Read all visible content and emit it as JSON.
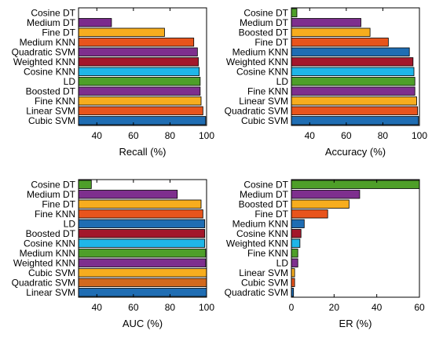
{
  "chart_data": [
    {
      "type": "bar",
      "orientation": "horizontal",
      "xlabel": "Recall (%)",
      "xlim": [
        30,
        100
      ],
      "xticks": [
        40,
        60,
        80,
        100
      ],
      "categories": [
        "Cosine DT",
        "Medium DT",
        "Fine DT",
        "Medium KNN",
        "Quadratic SVM",
        "Weighted KNN",
        "Cosine KNN",
        "LD",
        "Boosted DT",
        "Fine KNN",
        "Linear SVM",
        "Cubic SVM"
      ],
      "values": [
        30,
        48,
        77,
        93,
        95,
        95.5,
        96,
        96.5,
        96.5,
        97,
        98,
        99.5
      ],
      "colors": [
        "#2bb22b",
        "#7b2a8c",
        "#f7ad1e",
        "#e8541c",
        "#7e2f8e",
        "#a3172b",
        "#1fb6e8",
        "#4e9f29",
        "#7e2f8e",
        "#f7ad1e",
        "#e8541c",
        "#1f6db3"
      ]
    },
    {
      "type": "bar",
      "orientation": "horizontal",
      "xlabel": "Accuracy (%)",
      "xlim": [
        30,
        100
      ],
      "xticks": [
        40,
        60,
        80,
        100
      ],
      "categories": [
        "Cosine DT",
        "Medium DT",
        "Boosted DT",
        "Fine DT",
        "Medium KNN",
        "Weighted KNN",
        "Cosine KNN",
        "LD",
        "Fine KNN",
        "Linear SVM",
        "Quadratic SVM",
        "Cubic SVM"
      ],
      "values": [
        33,
        68,
        73,
        83,
        94.5,
        96.5,
        97,
        97.5,
        97.5,
        98.5,
        99,
        99.5
      ],
      "colors": [
        "#4e9f29",
        "#7e2f8e",
        "#f7ad1e",
        "#e8541c",
        "#1f6db3",
        "#a3172b",
        "#1fb6e8",
        "#4e9f29",
        "#7e2f8e",
        "#f7ad1e",
        "#e8541c",
        "#1f6db3"
      ]
    },
    {
      "type": "bar",
      "orientation": "horizontal",
      "xlabel": "AUC (%)",
      "xlim": [
        30,
        100
      ],
      "xticks": [
        40,
        60,
        80,
        100
      ],
      "categories": [
        "Cosine DT",
        "Medium DT",
        "Fine DT",
        "Fine KNN",
        "LD",
        "Boosted DT",
        "Cosine KNN",
        "Medium KNN",
        "Weighted KNN",
        "Cubic SVM",
        "Quadratic SVM",
        "Linear SVM"
      ],
      "values": [
        37,
        84,
        97,
        98,
        99,
        99,
        99,
        99.5,
        99.5,
        100,
        100,
        100
      ],
      "colors": [
        "#4e9f29",
        "#7e2f8e",
        "#f7ad1e",
        "#e8541c",
        "#1f6db3",
        "#a3172b",
        "#1fb6e8",
        "#4e9f29",
        "#7e2f8e",
        "#f7ad1e",
        "#d2691e",
        "#1f6db3"
      ]
    },
    {
      "type": "bar",
      "orientation": "horizontal",
      "xlabel": "ER (%)",
      "xlim": [
        0,
        60
      ],
      "xticks": [
        0,
        20,
        40,
        60
      ],
      "categories": [
        "Cosine DT",
        "Medium DT",
        "Boosted DT",
        "Fine DT",
        "Medium KNN",
        "Cosine KNN",
        "Weighted KNN",
        "Fine KNN",
        "LD",
        "Linear SVM",
        "Cubic SVM",
        "Quadratic SVM"
      ],
      "values": [
        60,
        32,
        27,
        17,
        6,
        4.5,
        4,
        3,
        3,
        1.5,
        1.5,
        1
      ],
      "colors": [
        "#4e9f29",
        "#7e2f8e",
        "#f7ad1e",
        "#e8541c",
        "#1f6db3",
        "#a3172b",
        "#1fb6e8",
        "#4e9f29",
        "#7e2f8e",
        "#f7ad1e",
        "#e8541c",
        "#1f6db3"
      ]
    }
  ]
}
